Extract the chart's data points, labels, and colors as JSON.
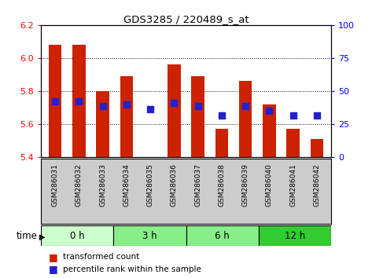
{
  "title": "GDS3285 / 220489_s_at",
  "samples": [
    "GSM286031",
    "GSM286032",
    "GSM286033",
    "GSM286034",
    "GSM286035",
    "GSM286036",
    "GSM286037",
    "GSM286038",
    "GSM286039",
    "GSM286040",
    "GSM286041",
    "GSM286042"
  ],
  "bar_values": [
    6.08,
    6.08,
    5.8,
    5.89,
    5.4,
    5.96,
    5.89,
    5.57,
    5.86,
    5.72,
    5.57,
    5.51
  ],
  "blue_values_left": [
    5.74,
    5.74,
    5.71,
    5.72,
    5.69,
    5.73,
    5.71,
    5.65,
    5.71,
    5.68,
    5.65,
    5.65
  ],
  "bar_bottom": 5.4,
  "ylim": [
    5.4,
    6.2
  ],
  "yticks_left": [
    5.4,
    5.6,
    5.8,
    6.0,
    6.2
  ],
  "yticks_right": [
    0,
    25,
    50,
    75,
    100
  ],
  "right_ylim": [
    0,
    100
  ],
  "bar_color": "#cc2200",
  "blue_color": "#2222cc",
  "time_groups": [
    {
      "label": "0 h",
      "start": 0,
      "end": 3,
      "color": "#ccffcc"
    },
    {
      "label": "3 h",
      "start": 3,
      "end": 6,
      "color": "#88ee88"
    },
    {
      "label": "6 h",
      "start": 6,
      "end": 9,
      "color": "#88ee88"
    },
    {
      "label": "12 h",
      "start": 9,
      "end": 12,
      "color": "#33cc33"
    }
  ],
  "xlabel_area_color": "#cccccc",
  "bar_width": 0.55,
  "blue_square_size": 30,
  "n": 12
}
